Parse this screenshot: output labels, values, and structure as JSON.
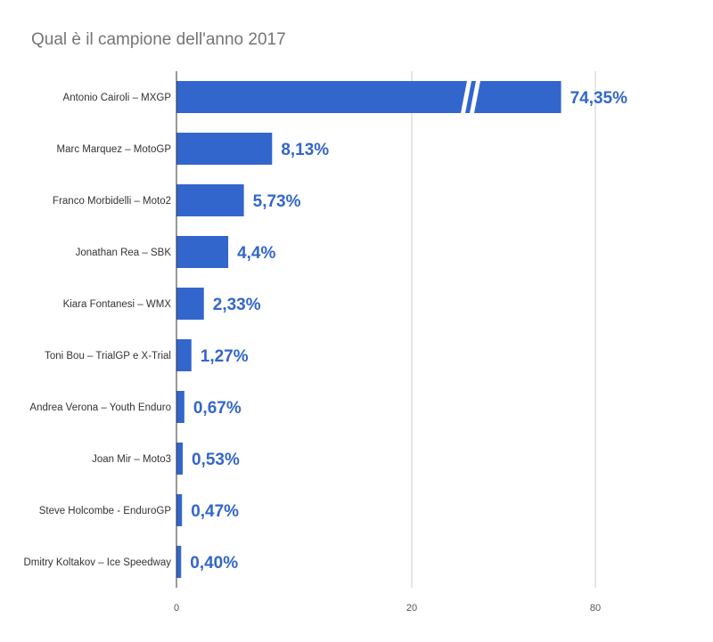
{
  "chart_data": {
    "type": "bar",
    "orientation": "horizontal",
    "title": "Qual è il campione dell'anno 2017",
    "categories": [
      "Antonio Cairoli – MXGP",
      "Marc Marquez – MotoGP",
      "Franco Morbidelli – Moto2",
      "Jonathan Rea – SBK",
      "Kiara Fontanesi – WMX",
      "Toni Bou – TrialGP e X-Trial",
      "Andrea Verona – Youth Enduro",
      "Joan Mir – Moto3",
      "Steve Holcombe - EnduroGP",
      "Dmitry Koltakov – Ice Speedway"
    ],
    "values": [
      74.35,
      8.13,
      5.73,
      4.4,
      2.33,
      1.27,
      0.67,
      0.53,
      0.47,
      0.4
    ],
    "value_labels": [
      "74,35%",
      "8,13%",
      "5,73%",
      "4,4%",
      "2,33%",
      "1,27%",
      "0,67%",
      "0,53%",
      "0,47%",
      "0,40%"
    ],
    "x_ticks": [
      {
        "value": 0,
        "label": "0"
      },
      {
        "value": 20,
        "label": "20"
      },
      {
        "value": 80,
        "label": "80"
      }
    ],
    "axis_break": {
      "from": 30,
      "to": 60
    },
    "xlim": [
      0,
      80
    ],
    "grid": true,
    "bar_color": "#3366cc",
    "gridline_color": "#cccccc"
  }
}
